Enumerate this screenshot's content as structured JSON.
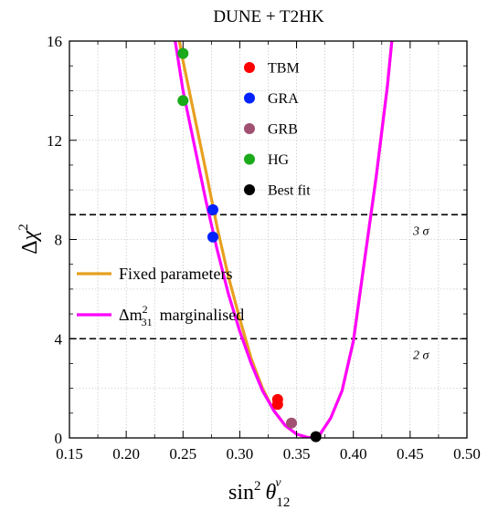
{
  "chart_data": {
    "type": "line",
    "title": "DUNE + T2HK",
    "xlabel": {
      "base": "sin",
      "sup": "2",
      "sym": "θ",
      "sub": "12",
      "nu": "ν"
    },
    "ylabel": {
      "delta": "Δ",
      "chi": "χ",
      "sup": "2"
    },
    "xlim": [
      0.15,
      0.5
    ],
    "ylim": [
      0,
      16
    ],
    "xticks": [
      0.15,
      0.2,
      0.25,
      0.3,
      0.35,
      0.4,
      0.45,
      0.5
    ],
    "xtick_labels": [
      "0.15",
      "0.20",
      "0.25",
      "0.30",
      "0.35",
      "0.40",
      "0.45",
      "0.50"
    ],
    "yticks": [
      0,
      4,
      8,
      12,
      16
    ],
    "ytick_labels": [
      "0",
      "4",
      "8",
      "12",
      "16"
    ],
    "grid": true,
    "series": [
      {
        "name": "Fixed parameters",
        "color": "#e8a020",
        "x": [
          0.242,
          0.25,
          0.26,
          0.27,
          0.28,
          0.29,
          0.3,
          0.31,
          0.32,
          0.33,
          0.34,
          0.35,
          0.36,
          0.365,
          0.37,
          0.38,
          0.39,
          0.4,
          0.41,
          0.42,
          0.43,
          0.436
        ],
        "y": [
          17.2,
          15.2,
          13.0,
          10.8,
          8.5,
          6.5,
          4.8,
          3.2,
          2.0,
          1.1,
          0.5,
          0.15,
          0.02,
          0.0,
          0.1,
          0.8,
          1.9,
          3.9,
          7.2,
          10.5,
          14.2,
          17.0
        ]
      },
      {
        "name": "Δm²₃₁ marginalised",
        "label_parts": {
          "delta": "Δ",
          "m": "m",
          "sup": "2",
          "sub": "31",
          "text": "marginalised"
        },
        "color": "#ff00ff",
        "x": [
          0.239,
          0.25,
          0.26,
          0.27,
          0.28,
          0.29,
          0.3,
          0.31,
          0.32,
          0.33,
          0.34,
          0.35,
          0.36,
          0.365,
          0.37,
          0.38,
          0.39,
          0.4,
          0.41,
          0.42,
          0.43,
          0.436
        ],
        "y": [
          17.2,
          14.0,
          11.8,
          9.6,
          7.6,
          5.8,
          4.3,
          3.0,
          1.9,
          1.1,
          0.5,
          0.15,
          0.02,
          0.0,
          0.1,
          0.8,
          1.9,
          3.9,
          7.2,
          10.5,
          14.2,
          17.0
        ]
      }
    ],
    "points": [
      {
        "name": "TBM",
        "color": "#ff0000",
        "x": 0.3333,
        "y": 1.55
      },
      {
        "name": "TBM",
        "color": "#ff0000",
        "x": 0.3333,
        "y": 1.35
      },
      {
        "name": "GRA",
        "color": "#0022ff",
        "x": 0.2763,
        "y": 9.2
      },
      {
        "name": "GRA",
        "color": "#0022ff",
        "x": 0.2763,
        "y": 8.1
      },
      {
        "name": "GRB",
        "color": "#a05070",
        "x": 0.3455,
        "y": 0.6
      },
      {
        "name": "HG",
        "color": "#1aaa1a",
        "x": 0.25,
        "y": 15.5
      },
      {
        "name": "HG",
        "color": "#1aaa1a",
        "x": 0.25,
        "y": 13.6
      },
      {
        "name": "Best fit",
        "color": "#000000",
        "x": 0.367,
        "y": 0.05
      }
    ],
    "point_legend": [
      {
        "label": "TBM",
        "color": "#ff0000"
      },
      {
        "label": "GRA",
        "color": "#0022ff"
      },
      {
        "label": "GRB",
        "color": "#a05070"
      },
      {
        "label": "HG",
        "color": "#1aaa1a"
      },
      {
        "label": "Best fit",
        "color": "#000000"
      }
    ],
    "reference_lines": [
      {
        "y": 9,
        "label": "3 σ"
      },
      {
        "y": 4,
        "label": "2 σ"
      }
    ],
    "line_legend_placement": "middle-left",
    "point_legend_placement": "top-center"
  }
}
